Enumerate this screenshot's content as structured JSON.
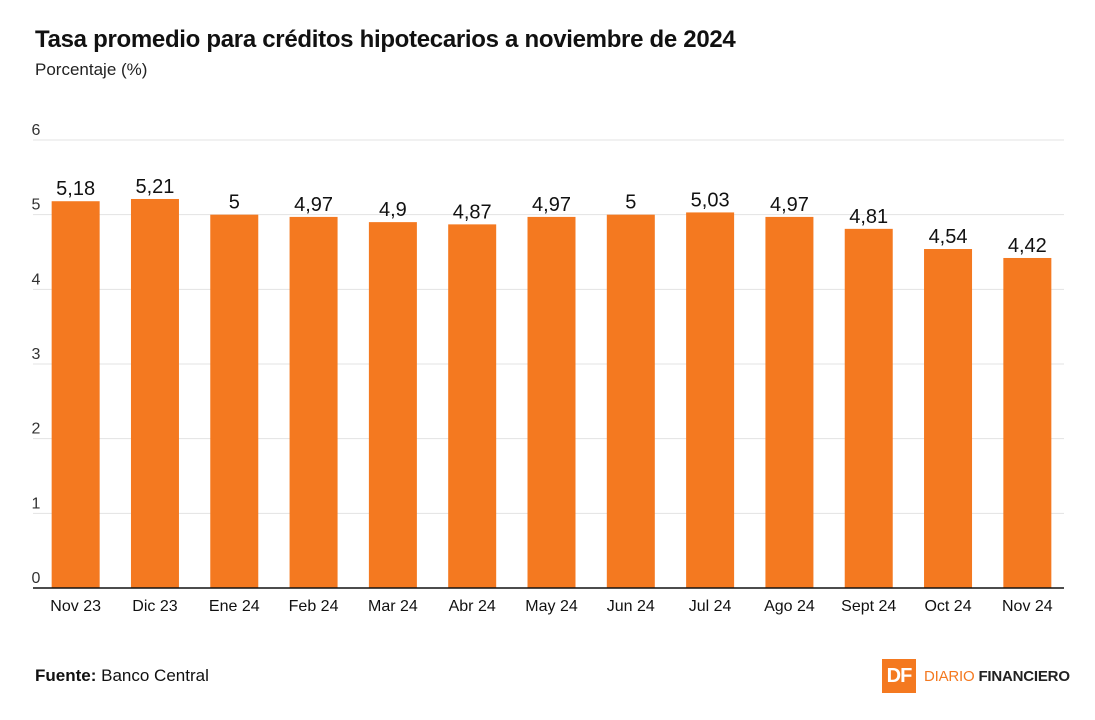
{
  "header": {
    "title": "Tasa promedio para créditos hipotecarios a noviembre de 2024",
    "subtitle": "Porcentaje (%)"
  },
  "footer": {
    "source_label": "Fuente:",
    "source_value": "Banco Central"
  },
  "brand": {
    "logo_text": "DF",
    "name_part1": "DIARIO ",
    "name_part2": "FINANCIERO"
  },
  "colors": {
    "bar": "#F47920",
    "grid": "#e3e3e3",
    "axis": "#111111",
    "text": "#111111"
  },
  "chart_data": {
    "type": "bar",
    "title": "Tasa promedio para créditos hipotecarios a noviembre de 2024",
    "subtitle": "Porcentaje (%)",
    "xlabel": "",
    "ylabel": "Porcentaje (%)",
    "categories": [
      "Nov 23",
      "Dic 23",
      "Ene 24",
      "Feb 24",
      "Mar 24",
      "Abr 24",
      "May 24",
      "Jun 24",
      "Jul 24",
      "Ago 24",
      "Sept 24",
      "Oct 24",
      "Nov 24"
    ],
    "values": [
      5.18,
      5.21,
      5,
      4.97,
      4.9,
      4.87,
      4.97,
      5,
      5.03,
      4.97,
      4.81,
      4.54,
      4.42
    ],
    "labels": [
      "5,18",
      "5,21",
      "5",
      "4,97",
      "4,9",
      "4,87",
      "4,97",
      "5",
      "5,03",
      "4,97",
      "4,81",
      "4,54",
      "4,42"
    ],
    "yticks": [
      "0",
      "1",
      "2",
      "3",
      "4",
      "5",
      "6"
    ],
    "ylim": [
      0,
      6
    ],
    "grid": true,
    "legend": "none"
  }
}
